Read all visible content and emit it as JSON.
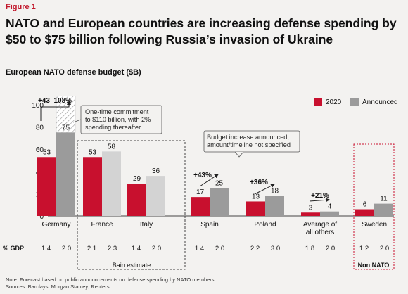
{
  "figure_label": "Figure 1",
  "title": "NATO and European countries are increasing defense spending by $50 to $75 billion following Russia’s invasion of Ukraine",
  "subtitle": "European NATO defense budget ($B)",
  "colors": {
    "series_2020": "#c8102e",
    "series_announced": "#9b9b9b",
    "series_2020_light": "#c8102e",
    "series_announced_light": "#d3d3d3",
    "accent_text": "#c2172b"
  },
  "chart_data": {
    "type": "bar",
    "title": "European NATO defense budget ($B)",
    "ylim": [
      0,
      100
    ],
    "yticks": [
      0,
      20,
      40,
      60,
      80,
      100
    ],
    "legend": [
      "2020",
      "Announced"
    ],
    "legend_position": "top-right",
    "gdp_label": "% GDP",
    "categories": [
      {
        "label": [
          "Germany"
        ],
        "v2020": 53,
        "vann": 75,
        "gdp2020": "1.4",
        "gdpann": "2.0",
        "shade": "dark",
        "growth": "+43–108%",
        "hatch_top": 108
      },
      {
        "label": [
          "France"
        ],
        "v2020": 53,
        "vann": 58,
        "gdp2020": "2.1",
        "gdpann": "2.3",
        "shade": "light",
        "growth": ""
      },
      {
        "label": [
          "Italy"
        ],
        "v2020": 29,
        "vann": 36,
        "gdp2020": "1.4",
        "gdpann": "2.0",
        "shade": "light",
        "growth": ""
      },
      {
        "label": [
          "Spain"
        ],
        "v2020": 17,
        "vann": 25,
        "gdp2020": "1.4",
        "gdpann": "2.0",
        "shade": "dark",
        "growth": "+43%"
      },
      {
        "label": [
          "Poland"
        ],
        "v2020": 13,
        "vann": 18,
        "gdp2020": "2.2",
        "gdpann": "3.0",
        "shade": "dark",
        "growth": "+36%"
      },
      {
        "label": [
          "Average of",
          "all others"
        ],
        "v2020": 3,
        "vann": 4,
        "gdp2020": "1.8",
        "gdpann": "2.0",
        "shade": "dark",
        "growth": "+21%"
      },
      {
        "label": [
          "Sweden"
        ],
        "v2020": 6,
        "vann": 11,
        "gdp2020": "1.2",
        "gdpann": "2.0",
        "shade": "dark",
        "growth": ""
      }
    ],
    "annotations": {
      "germany_callout": [
        "One-time commitment",
        "to $110 billion, with 2%",
        "spending thereafter"
      ],
      "budget_callout": [
        "Budget increase announced;",
        "amount/timeline not specified"
      ],
      "bain_estimate": "Bain estimate",
      "non_nato": "Non NATO"
    }
  },
  "note": "Note: Forecast based on public announcements on defense spending by NATO members",
  "sources": "Sources: Barclays; Morgan Stanley; Reuters"
}
